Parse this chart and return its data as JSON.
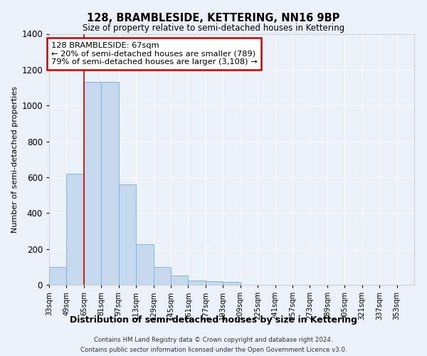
{
  "title": "128, BRAMBLESIDE, KETTERING, NN16 9BP",
  "subtitle": "Size of property relative to semi-detached houses in Kettering",
  "xlabel": "Distribution of semi-detached houses by size in Kettering",
  "ylabel": "Number of semi-detached properties",
  "footnote1": "Contains HM Land Registry data © Crown copyright and database right 2024.",
  "footnote2": "Contains public sector information licensed under the Open Government Licence v3.0.",
  "annotation_title": "128 BRAMBLESIDE: 67sqm",
  "annotation_line1": "← 20% of semi-detached houses are smaller (789)",
  "annotation_line2": "79% of semi-detached houses are larger (3,108) →",
  "bar_color": "#c5d8ed",
  "bar_edge_color": "#7bafd4",
  "background_color": "#eaf1f8",
  "grid_color": "#ffffff",
  "annotation_box_color": "#ffffff",
  "annotation_box_edge": "#cc0000",
  "property_line_color": "#cc0000",
  "categories": [
    "33sqm",
    "49sqm",
    "65sqm",
    "81sqm",
    "97sqm",
    "113sqm",
    "129sqm",
    "145sqm",
    "161sqm",
    "177sqm",
    "193sqm",
    "209sqm",
    "225sqm",
    "241sqm",
    "257sqm",
    "273sqm",
    "289sqm",
    "305sqm",
    "321sqm",
    "337sqm",
    "353sqm"
  ],
  "bin_edges": [
    33,
    49,
    65,
    81,
    97,
    113,
    129,
    145,
    161,
    177,
    193,
    209,
    225,
    241,
    257,
    273,
    289,
    305,
    321,
    337,
    353,
    369
  ],
  "values": [
    100,
    620,
    1130,
    1130,
    560,
    225,
    100,
    50,
    25,
    20,
    15,
    0,
    0,
    0,
    0,
    0,
    0,
    0,
    0,
    0,
    0
  ],
  "ylim": [
    0,
    1400
  ],
  "yticks": [
    0,
    200,
    400,
    600,
    800,
    1000,
    1200,
    1400
  ],
  "xlim_left": 33,
  "xlim_right": 369
}
